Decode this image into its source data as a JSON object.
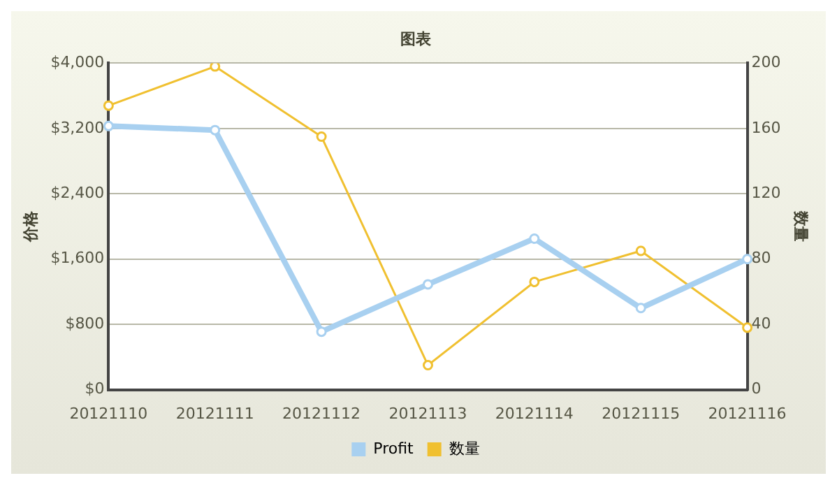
{
  "chart_data": {
    "type": "line",
    "title": "图表",
    "ylabel": "价格",
    "y2label": "数量",
    "categories": [
      "20121110",
      "20121111",
      "20121112",
      "20121113",
      "20121114",
      "20121115",
      "20121116"
    ],
    "series": [
      {
        "name": "Profit",
        "color": "#a8d0f0",
        "values": [
          3230,
          3180,
          710,
          1290,
          1850,
          1000,
          1600
        ]
      },
      {
        "name": "数量",
        "color": "#f0c030",
        "axis": "y2",
        "values": [
          174,
          198,
          155,
          15,
          66,
          85,
          38
        ]
      }
    ],
    "ylim": [
      0,
      4000
    ],
    "yticks": [
      {
        "value": 0,
        "label": "$0"
      },
      {
        "value": 800,
        "label": "$800"
      },
      {
        "value": 1600,
        "label": "$1,600"
      },
      {
        "value": 2400,
        "label": "$2,400"
      },
      {
        "value": 3200,
        "label": "$3,200"
      },
      {
        "value": 4000,
        "label": "$4,000"
      }
    ],
    "y2lim": [
      0,
      200
    ],
    "y2ticks": [
      0,
      40,
      80,
      120,
      160,
      200
    ],
    "grid": "y",
    "legend": "bottom",
    "marker": "circle"
  }
}
